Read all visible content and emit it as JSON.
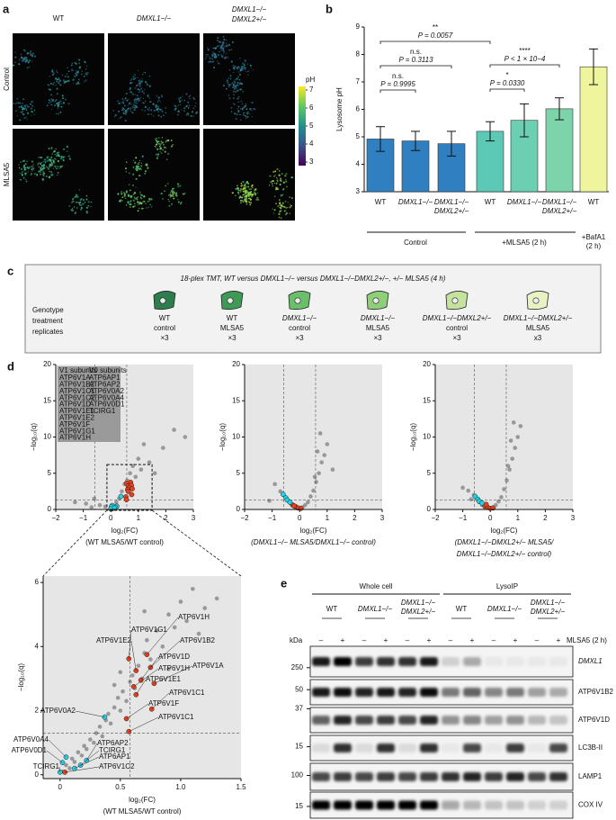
{
  "figure": {
    "panel_labels": [
      "a",
      "b",
      "c",
      "d",
      "e"
    ]
  },
  "panel_a": {
    "columns": [
      "WT",
      "DMXL1−/−",
      [
        "DMXL1−/−",
        "DMXL2+/−"
      ]
    ],
    "rows": [
      "Control",
      "MLSA5"
    ],
    "colorbar": {
      "label": "pH",
      "lim": [
        2.8,
        7.2
      ],
      "ticks": [
        3,
        4,
        5,
        6,
        7
      ]
    }
  },
  "chart_data": [
    {
      "type": "bar",
      "ylabel": "Lysosome pH",
      "categories": [
        "WT",
        "DMXL1−/−",
        [
          "DMXL1−/−",
          "DMXL2+/−"
        ],
        "WT",
        "DMXL1−/−",
        [
          "DMXL1−/−",
          "DMXL2+/−"
        ],
        "WT"
      ],
      "values": [
        4.92,
        4.85,
        4.75,
        5.2,
        5.6,
        6.02,
        7.55
      ],
      "errors": [
        0.45,
        0.35,
        0.45,
        0.35,
        0.6,
        0.4,
        0.65
      ],
      "colors": [
        "#2f7fc1",
        "#2f7fc1",
        "#2f7fc1",
        "#5cc8b6",
        "#6ccfb1",
        "#7dd4ab",
        "#eef59c"
      ],
      "ylim": [
        3,
        9
      ],
      "yticks": [
        3,
        4,
        5,
        6,
        7,
        8,
        9
      ],
      "groups": [
        "Control",
        "+MLSA5 (2 h)",
        [
          "+BafA1",
          "(2 h)"
        ]
      ],
      "annotations": [
        {
          "stars": "**",
          "p": "P = 0.0057"
        },
        {
          "stars": "n.s.",
          "p": "P = 0.3113"
        },
        {
          "stars": "n.s.",
          "p": "P = 0.9995"
        },
        {
          "stars": "****",
          "p": "P < 1 × 10−4"
        },
        {
          "stars": "*",
          "p": "P = 0.0330"
        }
      ]
    },
    {
      "type": "scatter",
      "xlabel": [
        "log₂(FC)",
        "(WT MLSA5/WT control)"
      ],
      "ylabel": "−log₁₀(q)",
      "xlim": [
        -2,
        3
      ],
      "ylim": [
        0,
        20
      ],
      "xticks": [
        {
          "value": -2,
          "label": "−2"
        },
        {
          "value": -1,
          "label": "−1"
        },
        0,
        1,
        2,
        3
      ],
      "yticks": [
        0,
        5,
        10,
        15,
        20
      ],
      "vlines": [
        -0.58,
        0.58
      ],
      "hline": 1.3,
      "x": [
        -1.3,
        -0.9,
        -0.6,
        -0.4,
        -0.2,
        0,
        0.1,
        0.2,
        0.3,
        0.4,
        0.5,
        0.6,
        0.7,
        0.8,
        0.9,
        1.0,
        1.1,
        1.2,
        1.4,
        1.6,
        1.9,
        2.3,
        2.7,
        -0.7
      ],
      "y": [
        1.0,
        0.8,
        1.5,
        0.6,
        0.4,
        0.2,
        0.5,
        1.0,
        1.5,
        2.5,
        3.5,
        4.0,
        5.0,
        6.0,
        4.5,
        7.0,
        5.5,
        9.0,
        6.5,
        5.0,
        8.5,
        11.0,
        10.0,
        0.3
      ],
      "color": "#222",
      "v1_color": "#e8401c",
      "v0_color": "#22d3e6",
      "legend": {
        "v1_title": "V1 subunits",
        "v1": [
          "ATP6V1A",
          "ATP6V1B2",
          "ATP6V1C1",
          "ATP6V1C2",
          "ATP6V1D",
          "ATP6V1E1",
          "ATP6V1E2",
          "ATP6V1F",
          "ATP6V1G1",
          "ATP6V1H"
        ],
        "v0_title": "V0 subunits",
        "v0": [
          "ATP6AP1",
          "ATP6AP2",
          "ATP6V0A2",
          "ATP6V0A4",
          "ATP6V0D1",
          "TCIRG1"
        ]
      }
    },
    {
      "type": "scatter",
      "xlabel": [
        "log₂(FC)",
        "(DMXL1−/− MLSA5/DMXL1−/− control)"
      ],
      "ylabel": "−log₁₀(q)",
      "xlim": [
        -2,
        3
      ],
      "ylim": [
        0,
        20
      ],
      "xticks": [
        {
          "value": -2,
          "label": "−2"
        },
        {
          "value": -1,
          "label": "−1"
        },
        0,
        1,
        2,
        3
      ],
      "yticks": [
        0,
        5,
        10,
        15,
        20
      ],
      "vlines": [
        -0.58,
        0.58
      ],
      "hline": 1.3,
      "x": [
        -0.9,
        -0.7,
        -0.6,
        -0.5,
        -0.4,
        -0.3,
        -0.2,
        -0.1,
        0,
        0.1,
        0.2,
        0.3,
        0.4,
        0.5,
        0.6,
        0.7,
        0.8,
        0.9,
        1.0,
        1.2,
        -1.1,
        0.55,
        0.65,
        0.75
      ],
      "y": [
        3.5,
        2.5,
        2.0,
        1.6,
        1.1,
        0.7,
        0.4,
        0.2,
        0.1,
        0.3,
        0.6,
        1.0,
        1.8,
        2.6,
        3.8,
        5.0,
        6.5,
        7.5,
        9.0,
        5.5,
        1.2,
        4.5,
        8.0,
        10.5
      ],
      "color": "#222",
      "v1_color": "#e8401c",
      "v0_color": "#22d3e6",
      "v1": {
        "x": [
          -0.25,
          -0.15,
          -0.05,
          0.05,
          -0.2
        ],
        "y": [
          0.6,
          0.4,
          0.2,
          0.15,
          0.5
        ]
      },
      "v0": {
        "x": [
          -0.6,
          -0.5,
          -0.45,
          -0.35
        ],
        "y": [
          2.1,
          1.6,
          1.3,
          1.0
        ]
      }
    },
    {
      "type": "scatter",
      "xlabel": [
        "log₂(FC)",
        "(DMXL1−/−DMXL2+/− MLSA5/",
        "DMXL1−/−DMXL2+/− control)"
      ],
      "ylabel": "−log₁₀(q)",
      "xlim": [
        -2,
        3
      ],
      "ylim": [
        0,
        20
      ],
      "xticks": [
        {
          "value": -2,
          "label": "−2"
        },
        {
          "value": -1,
          "label": "−1"
        },
        0,
        1,
        2,
        3
      ],
      "yticks": [
        0,
        5,
        10,
        15,
        20
      ],
      "vlines": [
        -0.58,
        0.58
      ],
      "hline": 1.3,
      "x": [
        -1.0,
        -0.8,
        -0.6,
        -0.5,
        -0.4,
        -0.3,
        -0.2,
        -0.1,
        0,
        0.1,
        0.2,
        0.3,
        0.4,
        0.5,
        0.6,
        0.7,
        0.8,
        0.9,
        1.0,
        1.1,
        0.65,
        0.75,
        0.85,
        -0.7
      ],
      "y": [
        3.0,
        2.6,
        2.0,
        1.5,
        1.0,
        0.6,
        0.3,
        0.2,
        0.1,
        0.3,
        0.6,
        1.1,
        1.7,
        2.8,
        4.0,
        5.5,
        7.0,
        8.5,
        10.0,
        11.5,
        6.0,
        9.5,
        12.0,
        1.4
      ],
      "color": "#222",
      "v1_color": "#e8401c",
      "v0_color": "#22d3e6",
      "v1": {
        "x": [
          -0.2,
          -0.1,
          0,
          0.1,
          -0.15
        ],
        "y": [
          0.5,
          0.3,
          0.15,
          0.2,
          0.7
        ]
      },
      "v0": {
        "x": [
          -0.55,
          -0.45,
          -0.4,
          -0.3
        ],
        "y": [
          1.8,
          1.4,
          1.1,
          0.9
        ]
      }
    },
    {
      "type": "scatter",
      "xlabel": [
        "log₂(FC)",
        "(WT MLSA5/WT control)"
      ],
      "ylabel": "−log₁₀(q)",
      "xlim": [
        -0.14,
        1.5
      ],
      "ylim": [
        -0.12,
        6.2
      ],
      "xticks": [
        0,
        0.5,
        {
          "value": 1,
          "label": "1.0"
        },
        1.5
      ],
      "yticks": [
        0,
        2,
        4,
        6
      ],
      "vlines": [
        0.58
      ],
      "hline": 1.3,
      "x": [
        0.02,
        0.05,
        0.08,
        0.1,
        0.12,
        0.15,
        0.18,
        0.2,
        0.22,
        0.25,
        0.28,
        0.3,
        0.33,
        0.35,
        0.38,
        0.4,
        0.42,
        0.45,
        0.48,
        0.5,
        0.52,
        0.55,
        0.58,
        0.6,
        0.62,
        0.65,
        0.68,
        0.7,
        0.72,
        0.75,
        0.8,
        0.85,
        0.9,
        0.95,
        1.0,
        1.05,
        1.1,
        1.2,
        1.3,
        0.5,
        0.45,
        0.7,
        0.9,
        1.15
      ],
      "y": [
        0.1,
        0.3,
        0.2,
        0.5,
        0.4,
        0.7,
        0.6,
        0.9,
        0.8,
        1.1,
        1.0,
        1.3,
        1.5,
        1.2,
        1.7,
        1.9,
        1.6,
        2.1,
        2.4,
        2.0,
        2.6,
        2.3,
        2.9,
        3.1,
        2.7,
        3.4,
        3.0,
        3.8,
        4.2,
        3.6,
        4.5,
        4.0,
        5.0,
        4.6,
        5.4,
        4.8,
        5.8,
        5.2,
        5.5,
        3.2,
        2.8,
        5.1,
        3.3,
        4.4
      ],
      "color": "#222",
      "v1_color": "#e8401c",
      "v0_color": "#22d3e6",
      "v1": {
        "names": [
          "ATP6V1H",
          "ATP6V1G1",
          "ATP6V1E2",
          "ATP6V1B2",
          "ATP6V1D",
          "ATP6V1A",
          "ATP6V1H",
          "ATP6V1E1",
          "ATP6V1C1",
          "ATP6V1F",
          "ATP6V1C1",
          "ATP6V1C2"
        ],
        "x": [
          0.72,
          0.57,
          0.63,
          0.75,
          0.67,
          0.78,
          0.61,
          0.63,
          0.76,
          0.55,
          0.57,
          0.04
        ],
        "y": [
          3.75,
          3.62,
          3.25,
          3.35,
          2.95,
          2.85,
          2.75,
          2.5,
          2.05,
          1.75,
          1.35,
          0.08
        ]
      },
      "v0": {
        "names": [
          "ATP6V0A2",
          "ATP6V0A4",
          "ATP6V0D1",
          "ATP6AP2",
          "TCIRG1",
          "ATP6AP1",
          "TCIRG1"
        ],
        "x": [
          0.37,
          0.05,
          0.02,
          0.22,
          0.17,
          0.12,
          0.0
        ],
        "y": [
          1.8,
          0.55,
          0.38,
          0.45,
          0.3,
          0.2,
          0.08
        ]
      }
    }
  ],
  "panel_c": {
    "title": "18-plex TMT, WT versus DMXL1−/− versus DMXL1−/−DMXL2+/−, +/− MLSA5 (4 h)",
    "row_label": [
      "Genotype",
      "treatment",
      "replicates"
    ],
    "groups": [
      [
        "WT",
        "control",
        "×3"
      ],
      [
        "WT",
        "MLSA5",
        "×3"
      ],
      [
        "DMXL1−/−",
        "control",
        "×3"
      ],
      [
        "DMXL1−/−",
        "MLSA5",
        "×3"
      ],
      [
        "DMXL1−/−DMXL2+/−",
        "control",
        "×3"
      ],
      [
        "DMXL1−/−DMXL2+/−",
        "MLSA5",
        "x3"
      ]
    ]
  },
  "panel_e": {
    "headers": [
      "Whole cell",
      "LysoIP"
    ],
    "genotypes": [
      "WT",
      "DMXL1−/−",
      [
        "DMXL1−/−",
        "DMXL2+/−"
      ],
      "WT",
      "DMXL1−/−",
      [
        "DMXL1−/−",
        "DMXL2+/−"
      ]
    ],
    "kda": "kDa",
    "signs": [
      "–",
      "+",
      "–",
      "+",
      "–",
      "+",
      "–",
      "+",
      "–",
      "+",
      "–",
      "+"
    ],
    "treatment": "MLSA5 (2 h)",
    "blots": [
      {
        "name": "DMXL1",
        "markers": [
          250
        ]
      },
      {
        "name": "ATP6V1B2",
        "markers": [
          50
        ]
      },
      {
        "name": "ATP6V1D",
        "markers": [
          37
        ]
      },
      {
        "name": "LC3B-II",
        "markers": [
          15
        ]
      },
      {
        "name": "LAMP1",
        "markers": [
          100
        ]
      },
      {
        "name": "COX IV",
        "markers": [
          15
        ]
      }
    ]
  }
}
